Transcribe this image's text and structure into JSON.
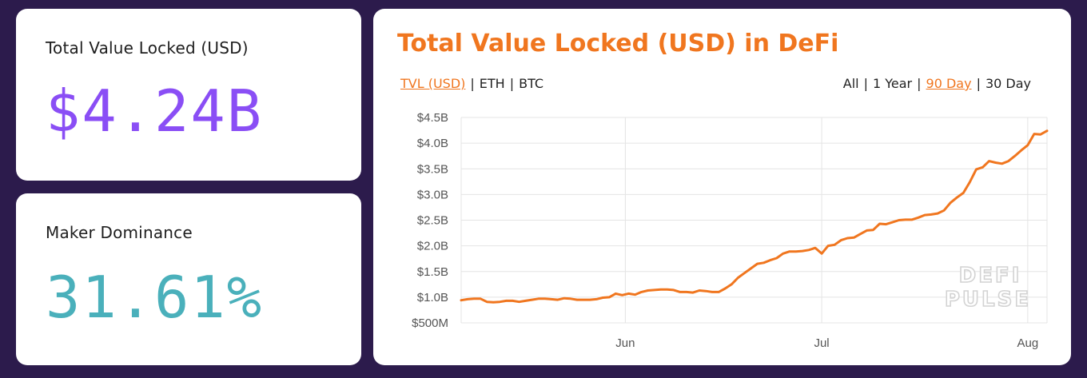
{
  "colors": {
    "background": "#2c1b4c",
    "accent_orange": "#f0761f",
    "tvl_value": "#8a4ef5",
    "dominance_value": "#4ab0bb",
    "grid": "#e4e4e4"
  },
  "tvl_card": {
    "label": "Total Value Locked (USD)",
    "value": "$4.24B"
  },
  "dominance_card": {
    "label": "Maker Dominance",
    "value": "31.61%"
  },
  "chart_card": {
    "title": "Total Value Locked (USD) in DeFi",
    "unit_options": [
      {
        "label": "TVL (USD)",
        "active": true
      },
      {
        "label": "ETH",
        "active": false
      },
      {
        "label": "BTC",
        "active": false
      }
    ],
    "range_options": [
      {
        "label": "All",
        "active": false
      },
      {
        "label": "1 Year",
        "active": false
      },
      {
        "label": "90 Day",
        "active": true
      },
      {
        "label": "30 Day",
        "active": false
      }
    ],
    "watermark": [
      "DEFI",
      "PULSE"
    ]
  },
  "chart_data": {
    "type": "line",
    "title": "Total Value Locked (USD) in DeFi",
    "xlabel": "",
    "ylabel": "",
    "ylim": [
      0.5,
      4.5
    ],
    "y_ticks": [
      {
        "value": 4.5,
        "label": "$4.5B"
      },
      {
        "value": 4.0,
        "label": "$4.0B"
      },
      {
        "value": 3.5,
        "label": "$3.5B"
      },
      {
        "value": 3.0,
        "label": "$3.0B"
      },
      {
        "value": 2.5,
        "label": "$2.5B"
      },
      {
        "value": 2.0,
        "label": "$2.0B"
      },
      {
        "value": 1.5,
        "label": "$1.5B"
      },
      {
        "value": 1.0,
        "label": "$1.0B"
      },
      {
        "value": 0.5,
        "label": "$500M"
      }
    ],
    "xlim": [
      0,
      91
    ],
    "x_ticks": [
      {
        "value": 25.5,
        "label": "Jun"
      },
      {
        "value": 56,
        "label": "Jul"
      },
      {
        "value": 88,
        "label": "Aug"
      }
    ],
    "series": [
      {
        "name": "TVL (USD)",
        "unit": "billion USD",
        "x": [
          0,
          1,
          2,
          3,
          4,
          5,
          6,
          7,
          8,
          9,
          10,
          11,
          12,
          13,
          14,
          15,
          16,
          17,
          18,
          19,
          20,
          21,
          22,
          23,
          24,
          25,
          26,
          27,
          28,
          29,
          30,
          31,
          32,
          33,
          34,
          35,
          36,
          37,
          38,
          39,
          40,
          41,
          42,
          43,
          44,
          45,
          46,
          47,
          48,
          49,
          50,
          51,
          52,
          53,
          54,
          55,
          56,
          57,
          58,
          59,
          60,
          61,
          62,
          63,
          64,
          65,
          66,
          67,
          68,
          69,
          70,
          71,
          72,
          73,
          74,
          75,
          76,
          77,
          78,
          79,
          80,
          81,
          82,
          83,
          84,
          85,
          86,
          87,
          88,
          89,
          90,
          91
        ],
        "values": [
          0.94,
          0.96,
          0.97,
          0.97,
          0.91,
          0.9,
          0.91,
          0.93,
          0.93,
          0.91,
          0.93,
          0.95,
          0.97,
          0.97,
          0.96,
          0.95,
          0.98,
          0.97,
          0.95,
          0.95,
          0.95,
          0.96,
          0.99,
          1.0,
          1.07,
          1.04,
          1.07,
          1.05,
          1.1,
          1.13,
          1.14,
          1.15,
          1.15,
          1.14,
          1.1,
          1.1,
          1.09,
          1.13,
          1.12,
          1.1,
          1.1,
          1.17,
          1.25,
          1.38,
          1.47,
          1.56,
          1.65,
          1.67,
          1.72,
          1.76,
          1.85,
          1.89,
          1.89,
          1.9,
          1.92,
          1.96,
          1.85,
          2.0,
          2.02,
          2.11,
          2.15,
          2.16,
          2.23,
          2.3,
          2.31,
          2.43,
          2.42,
          2.46,
          2.5,
          2.51,
          2.51,
          2.55,
          2.6,
          2.61,
          2.63,
          2.69,
          2.84,
          2.94,
          3.03,
          3.24,
          3.49,
          3.53,
          3.65,
          3.62,
          3.6,
          3.65,
          3.75,
          3.86,
          3.96,
          4.18,
          4.17,
          4.24
        ]
      }
    ]
  }
}
